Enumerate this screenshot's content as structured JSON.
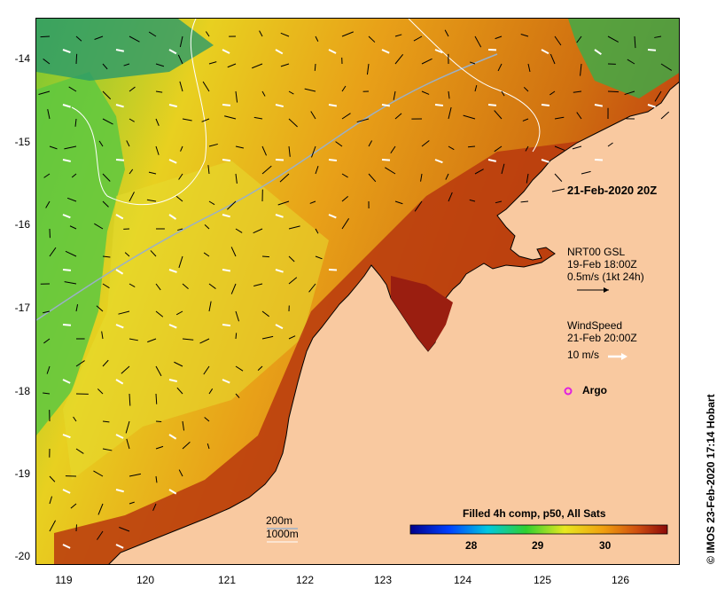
{
  "map": {
    "lat_ticks": [
      "-14",
      "-15",
      "-16",
      "-17",
      "-18",
      "-19",
      "-20"
    ],
    "lon_ticks": [
      "119",
      "120",
      "121",
      "122",
      "123",
      "124",
      "125",
      "126"
    ],
    "sst_date_label": "21-Feb-2020 20Z",
    "current_legend": {
      "line1": "NRT00 GSL",
      "line2": "19-Feb 18:00Z",
      "line3": "0.5m/s (1kt 24h)"
    },
    "wind_legend": {
      "line1": "WindSpeed",
      "line2": "21-Feb 20:00Z",
      "line3": "10 m/s"
    },
    "argo_label": "Argo",
    "depth_labels": [
      "200m",
      "1000m"
    ],
    "colorbar": {
      "title": "Filled 4h comp, p50, All Sats",
      "ticks": [
        "28",
        "29",
        "30"
      ]
    },
    "credit": "IMOS 23-Feb-2020 17:14 Hobart",
    "credit_symbol": "©",
    "colors": {
      "land": "#f9c9a0",
      "argo": "#e020e0",
      "current_arrow": "#000000",
      "wind_arrow": "#ffffff"
    }
  }
}
